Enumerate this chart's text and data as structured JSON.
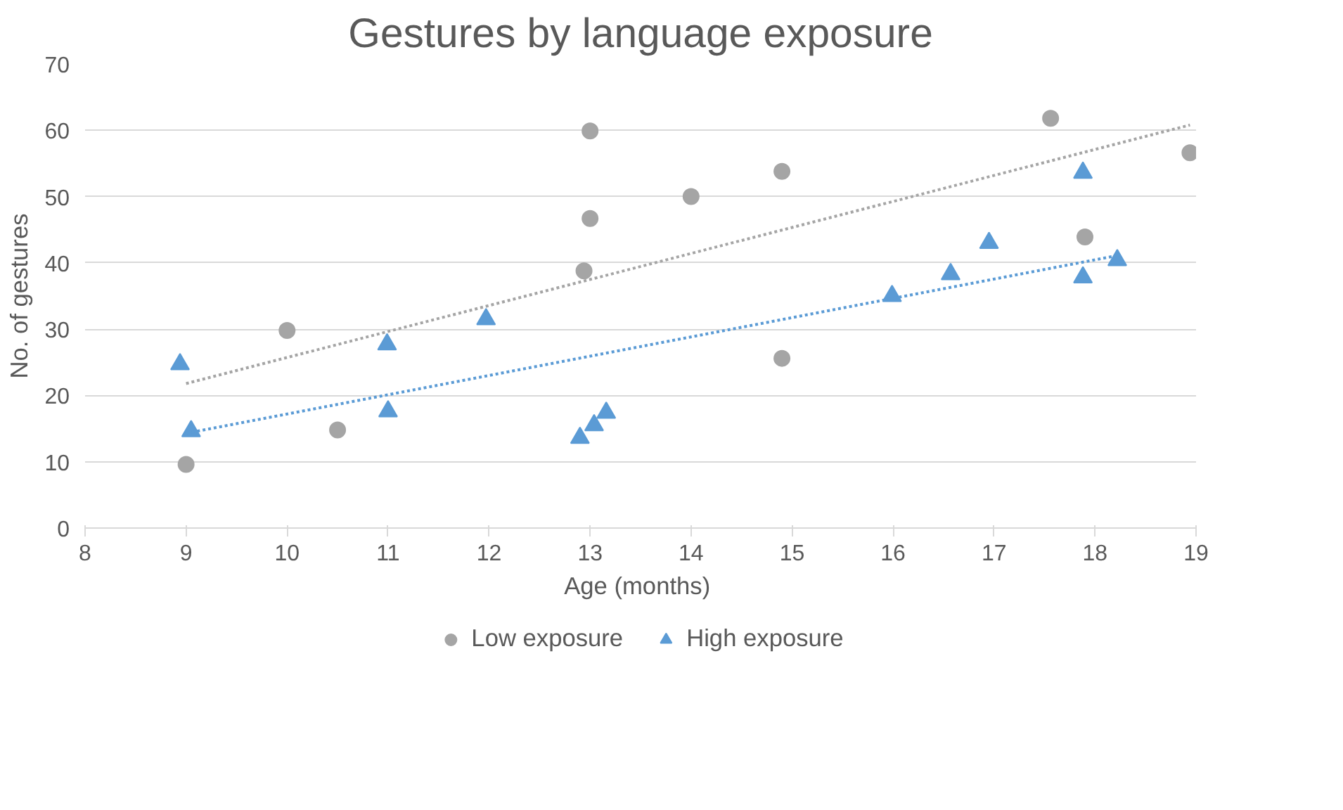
{
  "chart_data": {
    "type": "scatter",
    "title": "Gestures by language exposure",
    "xlabel": "Age  (months)",
    "ylabel": "No. of gestures",
    "xlim": [
      8,
      19
    ],
    "xticks": [
      8,
      9,
      10,
      11,
      12,
      13,
      14,
      15,
      16,
      17,
      18,
      19
    ],
    "ylim": [
      0,
      70
    ],
    "yticks": [
      0,
      10,
      20,
      30,
      40,
      50,
      60,
      70
    ],
    "grid": "y",
    "legend": "bottom",
    "series": [
      {
        "name": "Low exposure",
        "color": "#a5a5a5",
        "marker": "circle",
        "x": [
          9.0,
          10.0,
          10.5,
          12.94,
          13.0,
          13.0,
          14.0,
          14.9,
          14.9,
          17.56,
          17.9,
          18.94
        ],
        "values": [
          9.6,
          29.8,
          14.8,
          38.8,
          46.7,
          59.9,
          50.0,
          53.8,
          25.6,
          61.8,
          43.9,
          56.6
        ]
      },
      {
        "name": "High exposure",
        "color": "#5b9bd5",
        "marker": "triangle",
        "x": [
          8.94,
          9.05,
          10.99,
          11.0,
          11.97,
          12.9,
          13.04,
          13.16,
          15.99,
          16.57,
          16.95,
          17.88,
          17.88,
          18.22
        ],
        "values": [
          24.7,
          14.6,
          27.7,
          17.6,
          31.5,
          13.6,
          15.5,
          17.4,
          35.0,
          38.3,
          43.0,
          53.6,
          37.8,
          40.4
        ]
      },
      {
        "type": "line",
        "color": "#a5a5a5",
        "marker": "none",
        "line_style": "dotted",
        "x": [
          9.0,
          18.94
        ],
        "values": [
          21.8,
          60.8
        ]
      },
      {
        "type": "line",
        "color": "#5b9bd5",
        "marker": "none",
        "line_style": "dotted",
        "x": [
          9.0,
          18.22
        ],
        "values": [
          14.3,
          41.1
        ]
      }
    ]
  }
}
